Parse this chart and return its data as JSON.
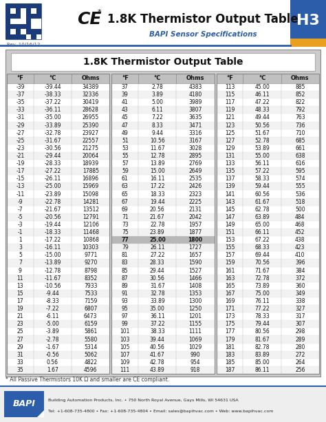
{
  "title_header": "1.8K Thermistor Output Table",
  "subtitle": "BAPI Sensor Specifications",
  "badge": "H3",
  "rev": "Rev. 10/16/12",
  "table_title": "1.8K Thermistor Output Table",
  "footnote": "* All Passive Thermistors 10K Ω and smaller are CE compliant.",
  "footer_line1": "Building Automation Products, Inc. • 750 North Royal Avenue, Gays Mills, WI 54631 USA",
  "footer_line2": "Tel: +1-608-735-4800 • Fax: +1-608-735-4804 • Email: sales@bapihvac.com • Web: www.bapihvac.com",
  "col_headers": [
    "°F",
    "°C",
    "Ohms"
  ],
  "highlight_row_f": 77,
  "data": [
    [
      -39,
      -39.44,
      34389
    ],
    [
      -37,
      -38.33,
      32336
    ],
    [
      -35,
      -37.22,
      30419
    ],
    [
      -33,
      -36.11,
      28628
    ],
    [
      -31,
      -35.0,
      26955
    ],
    [
      -29,
      -33.89,
      25390
    ],
    [
      -27,
      -32.78,
      23927
    ],
    [
      -25,
      -31.67,
      22557
    ],
    [
      -23,
      -30.56,
      21275
    ],
    [
      -21,
      -29.44,
      20064
    ],
    [
      -19,
      -28.33,
      18939
    ],
    [
      -17,
      -27.22,
      17885
    ],
    [
      -15,
      -26.11,
      16896
    ],
    [
      -13,
      -25.0,
      15969
    ],
    [
      -11,
      -23.89,
      15098
    ],
    [
      -9,
      -22.78,
      14281
    ],
    [
      -7,
      -21.67,
      13512
    ],
    [
      -5,
      -20.56,
      12791
    ],
    [
      -3,
      -19.44,
      12106
    ],
    [
      -1,
      -18.33,
      11468
    ],
    [
      1,
      -17.22,
      10868
    ],
    [
      3,
      -16.11,
      10303
    ],
    [
      5,
      -15.0,
      9771
    ],
    [
      7,
      -13.89,
      9270
    ],
    [
      9,
      -12.78,
      8798
    ],
    [
      11,
      -11.67,
      8352
    ],
    [
      13,
      -10.56,
      7933
    ],
    [
      15,
      -9.44,
      7533
    ],
    [
      17,
      -8.33,
      7159
    ],
    [
      19,
      -7.22,
      6807
    ],
    [
      21,
      -6.11,
      6473
    ],
    [
      23,
      -5.0,
      6159
    ],
    [
      25,
      -3.89,
      5861
    ],
    [
      27,
      -2.78,
      5580
    ],
    [
      29,
      -1.67,
      5314
    ],
    [
      31,
      -0.56,
      5062
    ],
    [
      33,
      0.56,
      4822
    ],
    [
      35,
      1.67,
      4596
    ],
    [
      37,
      2.78,
      4383
    ],
    [
      39,
      3.89,
      4180
    ],
    [
      41,
      5.0,
      3989
    ],
    [
      43,
      6.11,
      3807
    ],
    [
      45,
      7.22,
      3635
    ],
    [
      47,
      8.33,
      3471
    ],
    [
      49,
      9.44,
      3316
    ],
    [
      51,
      10.56,
      3167
    ],
    [
      53,
      11.67,
      3028
    ],
    [
      55,
      12.78,
      2895
    ],
    [
      57,
      13.89,
      2769
    ],
    [
      59,
      15.0,
      2649
    ],
    [
      61,
      16.11,
      2535
    ],
    [
      63,
      17.22,
      2426
    ],
    [
      65,
      18.33,
      2323
    ],
    [
      67,
      19.44,
      2225
    ],
    [
      69,
      20.56,
      2131
    ],
    [
      71,
      21.67,
      2042
    ],
    [
      73,
      22.78,
      1957
    ],
    [
      75,
      23.89,
      1877
    ],
    [
      77,
      25.0,
      1800
    ],
    [
      79,
      26.11,
      1727
    ],
    [
      81,
      27.22,
      1657
    ],
    [
      83,
      28.33,
      1590
    ],
    [
      85,
      29.44,
      1527
    ],
    [
      87,
      30.56,
      1466
    ],
    [
      89,
      31.67,
      1408
    ],
    [
      91,
      32.78,
      1353
    ],
    [
      93,
      33.89,
      1300
    ],
    [
      95,
      35.0,
      1250
    ],
    [
      97,
      36.11,
      1201
    ],
    [
      99,
      37.22,
      1155
    ],
    [
      101,
      38.33,
      1111
    ],
    [
      103,
      39.44,
      1069
    ],
    [
      105,
      40.56,
      1029
    ],
    [
      107,
      41.67,
      990
    ],
    [
      109,
      42.78,
      954
    ],
    [
      111,
      43.89,
      918
    ],
    [
      113,
      45.0,
      885
    ],
    [
      115,
      46.11,
      852
    ],
    [
      117,
      47.22,
      822
    ],
    [
      119,
      48.33,
      792
    ],
    [
      121,
      49.44,
      763
    ],
    [
      123,
      50.56,
      736
    ],
    [
      125,
      51.67,
      710
    ],
    [
      127,
      52.78,
      685
    ],
    [
      129,
      53.89,
      661
    ],
    [
      131,
      55.0,
      638
    ],
    [
      133,
      56.11,
      616
    ],
    [
      135,
      57.22,
      595
    ],
    [
      137,
      58.33,
      574
    ],
    [
      139,
      59.44,
      555
    ],
    [
      141,
      60.56,
      536
    ],
    [
      143,
      61.67,
      518
    ],
    [
      145,
      62.78,
      500
    ],
    [
      147,
      63.89,
      484
    ],
    [
      149,
      65.0,
      468
    ],
    [
      151,
      66.11,
      452
    ],
    [
      153,
      67.22,
      438
    ],
    [
      155,
      68.33,
      423
    ],
    [
      157,
      69.44,
      410
    ],
    [
      159,
      70.56,
      396
    ],
    [
      161,
      71.67,
      384
    ],
    [
      163,
      72.78,
      372
    ],
    [
      165,
      73.89,
      360
    ],
    [
      167,
      75.0,
      349
    ],
    [
      169,
      76.11,
      338
    ],
    [
      171,
      77.22,
      327
    ],
    [
      173,
      78.33,
      317
    ],
    [
      175,
      79.44,
      307
    ],
    [
      177,
      80.56,
      298
    ],
    [
      179,
      81.67,
      289
    ],
    [
      181,
      82.78,
      280
    ],
    [
      183,
      83.89,
      272
    ],
    [
      185,
      85.0,
      264
    ],
    [
      187,
      86.11,
      256
    ]
  ],
  "blue": "#2b5daa",
  "orange": "#e8a020",
  "table_bg": "#cccccc",
  "row_white": "#ffffff",
  "row_light": "#f2f2f2",
  "row_highlight": "#b8b8b8",
  "header_gray": "#c0c0c0"
}
